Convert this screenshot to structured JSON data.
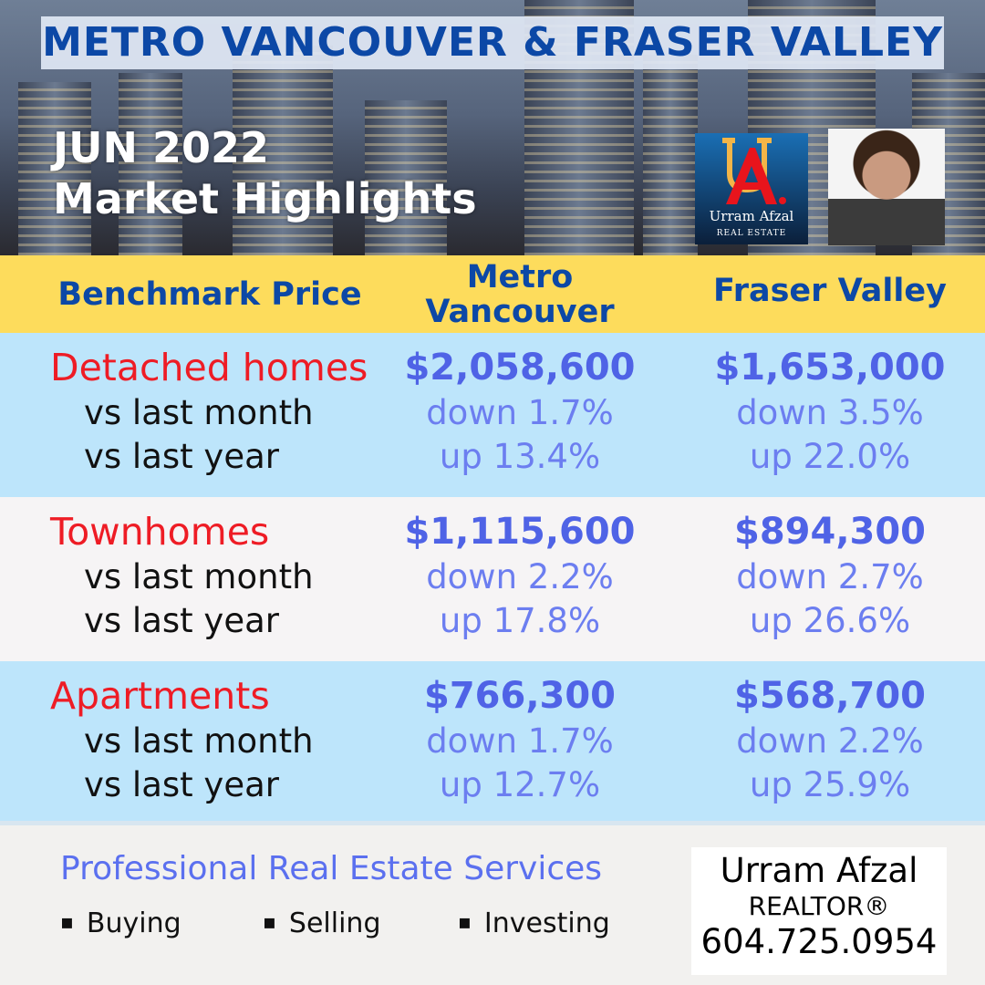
{
  "header": {
    "title": "METRO VANCOUVER & FRASER VALLEY",
    "month": "JUN 2022",
    "subtitle": "Market Highlights",
    "logo": {
      "letters": "UA.",
      "name": "Urram Afzal",
      "tagline": "REAL ESTATE"
    }
  },
  "table": {
    "headers": [
      "Benchmark Price",
      "Metro Vancouver",
      "Fraser Valley"
    ],
    "rows": [
      {
        "label": "Detached homes",
        "sub_labels": [
          "vs last month",
          "vs last year"
        ],
        "metro": {
          "price": "$2,058,600",
          "month": "down 1.7%",
          "year": "up 13.4%"
        },
        "fraser": {
          "price": "$1,653,000",
          "month": "down 3.5%",
          "year": "up 22.0%"
        }
      },
      {
        "label": "Townhomes",
        "sub_labels": [
          "vs last month",
          "vs last year"
        ],
        "metro": {
          "price": "$1,115,600",
          "month": "down 2.2%",
          "year": "up 17.8%"
        },
        "fraser": {
          "price": "$894,300",
          "month": "down 2.7%",
          "year": "up 26.6%"
        }
      },
      {
        "label": "Apartments",
        "sub_labels": [
          "vs last month",
          "vs last year"
        ],
        "metro": {
          "price": "$766,300",
          "month": "down 1.7%",
          "year": "up 12.7%"
        },
        "fraser": {
          "price": "$568,700",
          "month": "down 2.2%",
          "year": "up 25.9%"
        }
      }
    ]
  },
  "footer": {
    "services_title": "Professional Real Estate Services",
    "services": [
      "Buying",
      "Selling",
      "Investing"
    ],
    "contact": {
      "name": "Urram Afzal",
      "role": "REALTOR®",
      "phone": "604.725.0954"
    }
  },
  "colors": {
    "title_blue": "#0c48a6",
    "header_yellow": "#fddc5c",
    "row_blue": "#bde5fb",
    "row_gray": "#f6f4f5",
    "label_red": "#ee1c25",
    "price_blue": "#4f63e6"
  }
}
